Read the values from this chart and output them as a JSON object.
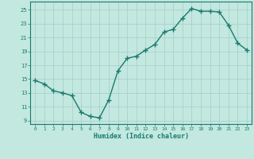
{
  "x": [
    0,
    1,
    2,
    3,
    4,
    5,
    6,
    7,
    8,
    9,
    10,
    11,
    12,
    13,
    14,
    15,
    16,
    17,
    18,
    19,
    20,
    21,
    22,
    23
  ],
  "y": [
    14.8,
    14.3,
    13.3,
    13.0,
    12.6,
    10.2,
    9.6,
    9.4,
    12.0,
    16.2,
    18.0,
    18.3,
    19.2,
    20.0,
    21.8,
    22.2,
    23.8,
    25.2,
    24.8,
    24.8,
    24.7,
    22.8,
    20.2,
    19.2
  ],
  "line_color": "#1a7a6e",
  "bg_color": "#c2e8e0",
  "grid_color": "#a8ccc8",
  "xlabel": "Humidex (Indice chaleur)",
  "xlim": [
    -0.5,
    23.5
  ],
  "ylim": [
    8.5,
    26.2
  ],
  "yticks": [
    9,
    11,
    13,
    15,
    17,
    19,
    21,
    23,
    25
  ],
  "xticks": [
    0,
    1,
    2,
    3,
    4,
    5,
    6,
    7,
    8,
    9,
    10,
    11,
    12,
    13,
    14,
    15,
    16,
    17,
    18,
    19,
    20,
    21,
    22,
    23
  ],
  "marker_size": 4,
  "line_width": 1.0
}
